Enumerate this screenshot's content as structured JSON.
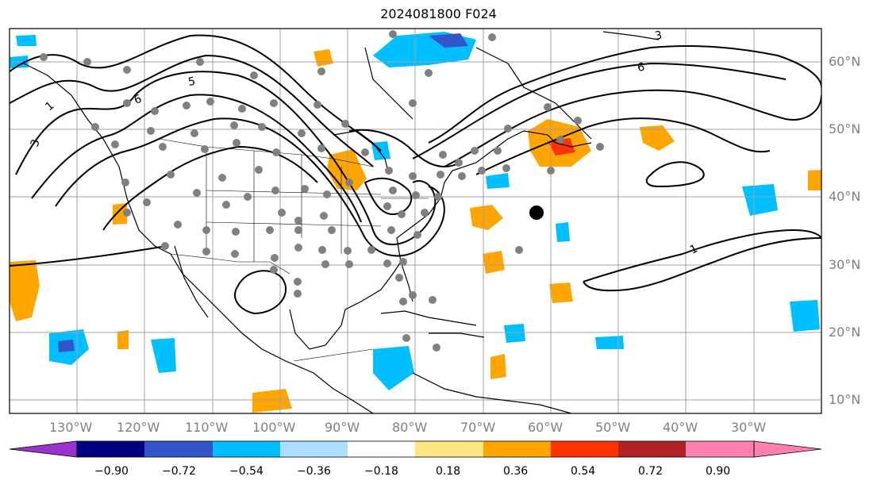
{
  "title": "2024081800 F024",
  "lon_labels": [
    "130°W",
    "120°W",
    "110°W",
    "100°W",
    "90°W",
    "80°W",
    "70°W",
    "60°W",
    "50°W",
    "40°W",
    "30°W"
  ],
  "lat_labels": [
    "60°N",
    "50°N",
    "40°N",
    "30°N",
    "20°N",
    "10°N"
  ],
  "contour_labels": [
    "5",
    "6",
    "3",
    "1",
    "6",
    "3",
    "1"
  ],
  "colorbar": {
    "ticks": [
      "−0.90",
      "−0.72",
      "−0.54",
      "−0.36",
      "−0.18",
      "0.18",
      "0.36",
      "0.54",
      "0.72",
      "0.90"
    ],
    "colors": [
      "#9933cc",
      "#000080",
      "#3355cc",
      "#00bfff",
      "#aadfff",
      "#ffffff",
      "#ffe680",
      "#ffa500",
      "#ff3300",
      "#b22222",
      "#ff80b0"
    ]
  },
  "colors": {
    "land_outline": "#000000",
    "grid": "#a0a0a0",
    "station": "#808080",
    "label": "#808080"
  }
}
